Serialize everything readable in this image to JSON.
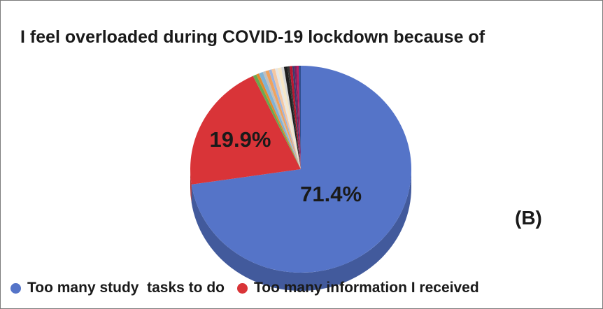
{
  "chart_data": {
    "type": "pie",
    "title": "I feel overloaded during COVID-19 lockdown because of",
    "panel_label": "(B)",
    "slices": [
      {
        "name": "Too many study  tasks to do",
        "value": 71.4,
        "color": "#5574c8",
        "label": "71.4%"
      },
      {
        "name": "Too many information I received",
        "value": 19.9,
        "color": "#d93438",
        "label": "19.9%"
      },
      {
        "value": 0.5,
        "color": "#6aa84f"
      },
      {
        "value": 0.4,
        "color": "#e08a2c"
      },
      {
        "value": 0.6,
        "color": "#7fb3d5"
      },
      {
        "value": 0.4,
        "color": "#bfbfbf"
      },
      {
        "value": 0.5,
        "color": "#f0a35e"
      },
      {
        "value": 0.4,
        "color": "#9db4df"
      },
      {
        "value": 0.5,
        "color": "#f4c7a1"
      },
      {
        "value": 0.4,
        "color": "#e6e6e6"
      },
      {
        "value": 0.5,
        "color": "#f7e7c6"
      },
      {
        "value": 0.4,
        "color": "#d9d9d9"
      },
      {
        "value": 0.5,
        "color": "#1f1f1f"
      },
      {
        "value": 0.3,
        "color": "#333333"
      },
      {
        "value": 0.4,
        "color": "#b8162f"
      },
      {
        "value": 0.3,
        "color": "#3b3b6d"
      },
      {
        "value": 0.3,
        "color": "#7a1f5c"
      },
      {
        "value": 0.3,
        "color": "#c2185b"
      },
      {
        "value": 0.3,
        "color": "#2f4f8f"
      }
    ],
    "legend": [
      {
        "label": "Too many study  tasks to do",
        "color": "#5574c8"
      },
      {
        "label": "Too many information I received",
        "color": "#d93438"
      }
    ]
  }
}
